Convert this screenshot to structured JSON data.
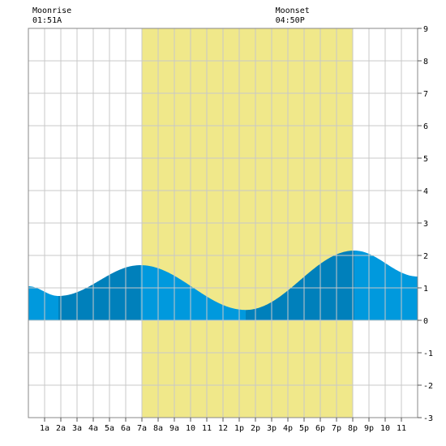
{
  "chart_data": {
    "type": "area",
    "title": "",
    "xlabel": "",
    "ylabel": "",
    "x_tick_labels": [
      "1a",
      "2a",
      "3a",
      "4a",
      "5a",
      "6a",
      "7a",
      "8a",
      "9a",
      "10",
      "11",
      "12",
      "1p",
      "2p",
      "3p",
      "4p",
      "5p",
      "6p",
      "7p",
      "8p",
      "9p",
      "10",
      "11"
    ],
    "xlim_hours": [
      0,
      24
    ],
    "ylim": [
      -3,
      9
    ],
    "y_ticks": [
      -3,
      -2,
      -1,
      0,
      1,
      2,
      3,
      4,
      5,
      6,
      7,
      8,
      9
    ],
    "grid": true,
    "daylight_hours": [
      7,
      20
    ],
    "annotations": [
      {
        "title": "Moonrise",
        "time": "01:51A",
        "hour": 1.85
      },
      {
        "title": "Moonset",
        "time": "04:50P",
        "hour": 16.83
      }
    ],
    "tide_extrema": [
      {
        "hour": 1.85,
        "value": 0.75,
        "kind": "low"
      },
      {
        "hour": 6.9,
        "value": 1.7,
        "kind": "high"
      },
      {
        "hour": 13.4,
        "value": 0.32,
        "kind": "low"
      },
      {
        "hour": 20.1,
        "value": 2.15,
        "kind": "high"
      }
    ],
    "tide_start_value": 1.05,
    "tide_end_value": 1.35,
    "colors": {
      "tide_light": "#0099dd",
      "tide_dark": "#0080bb",
      "daylight": "#f0e88a",
      "grid": "#c8c8c8"
    }
  }
}
